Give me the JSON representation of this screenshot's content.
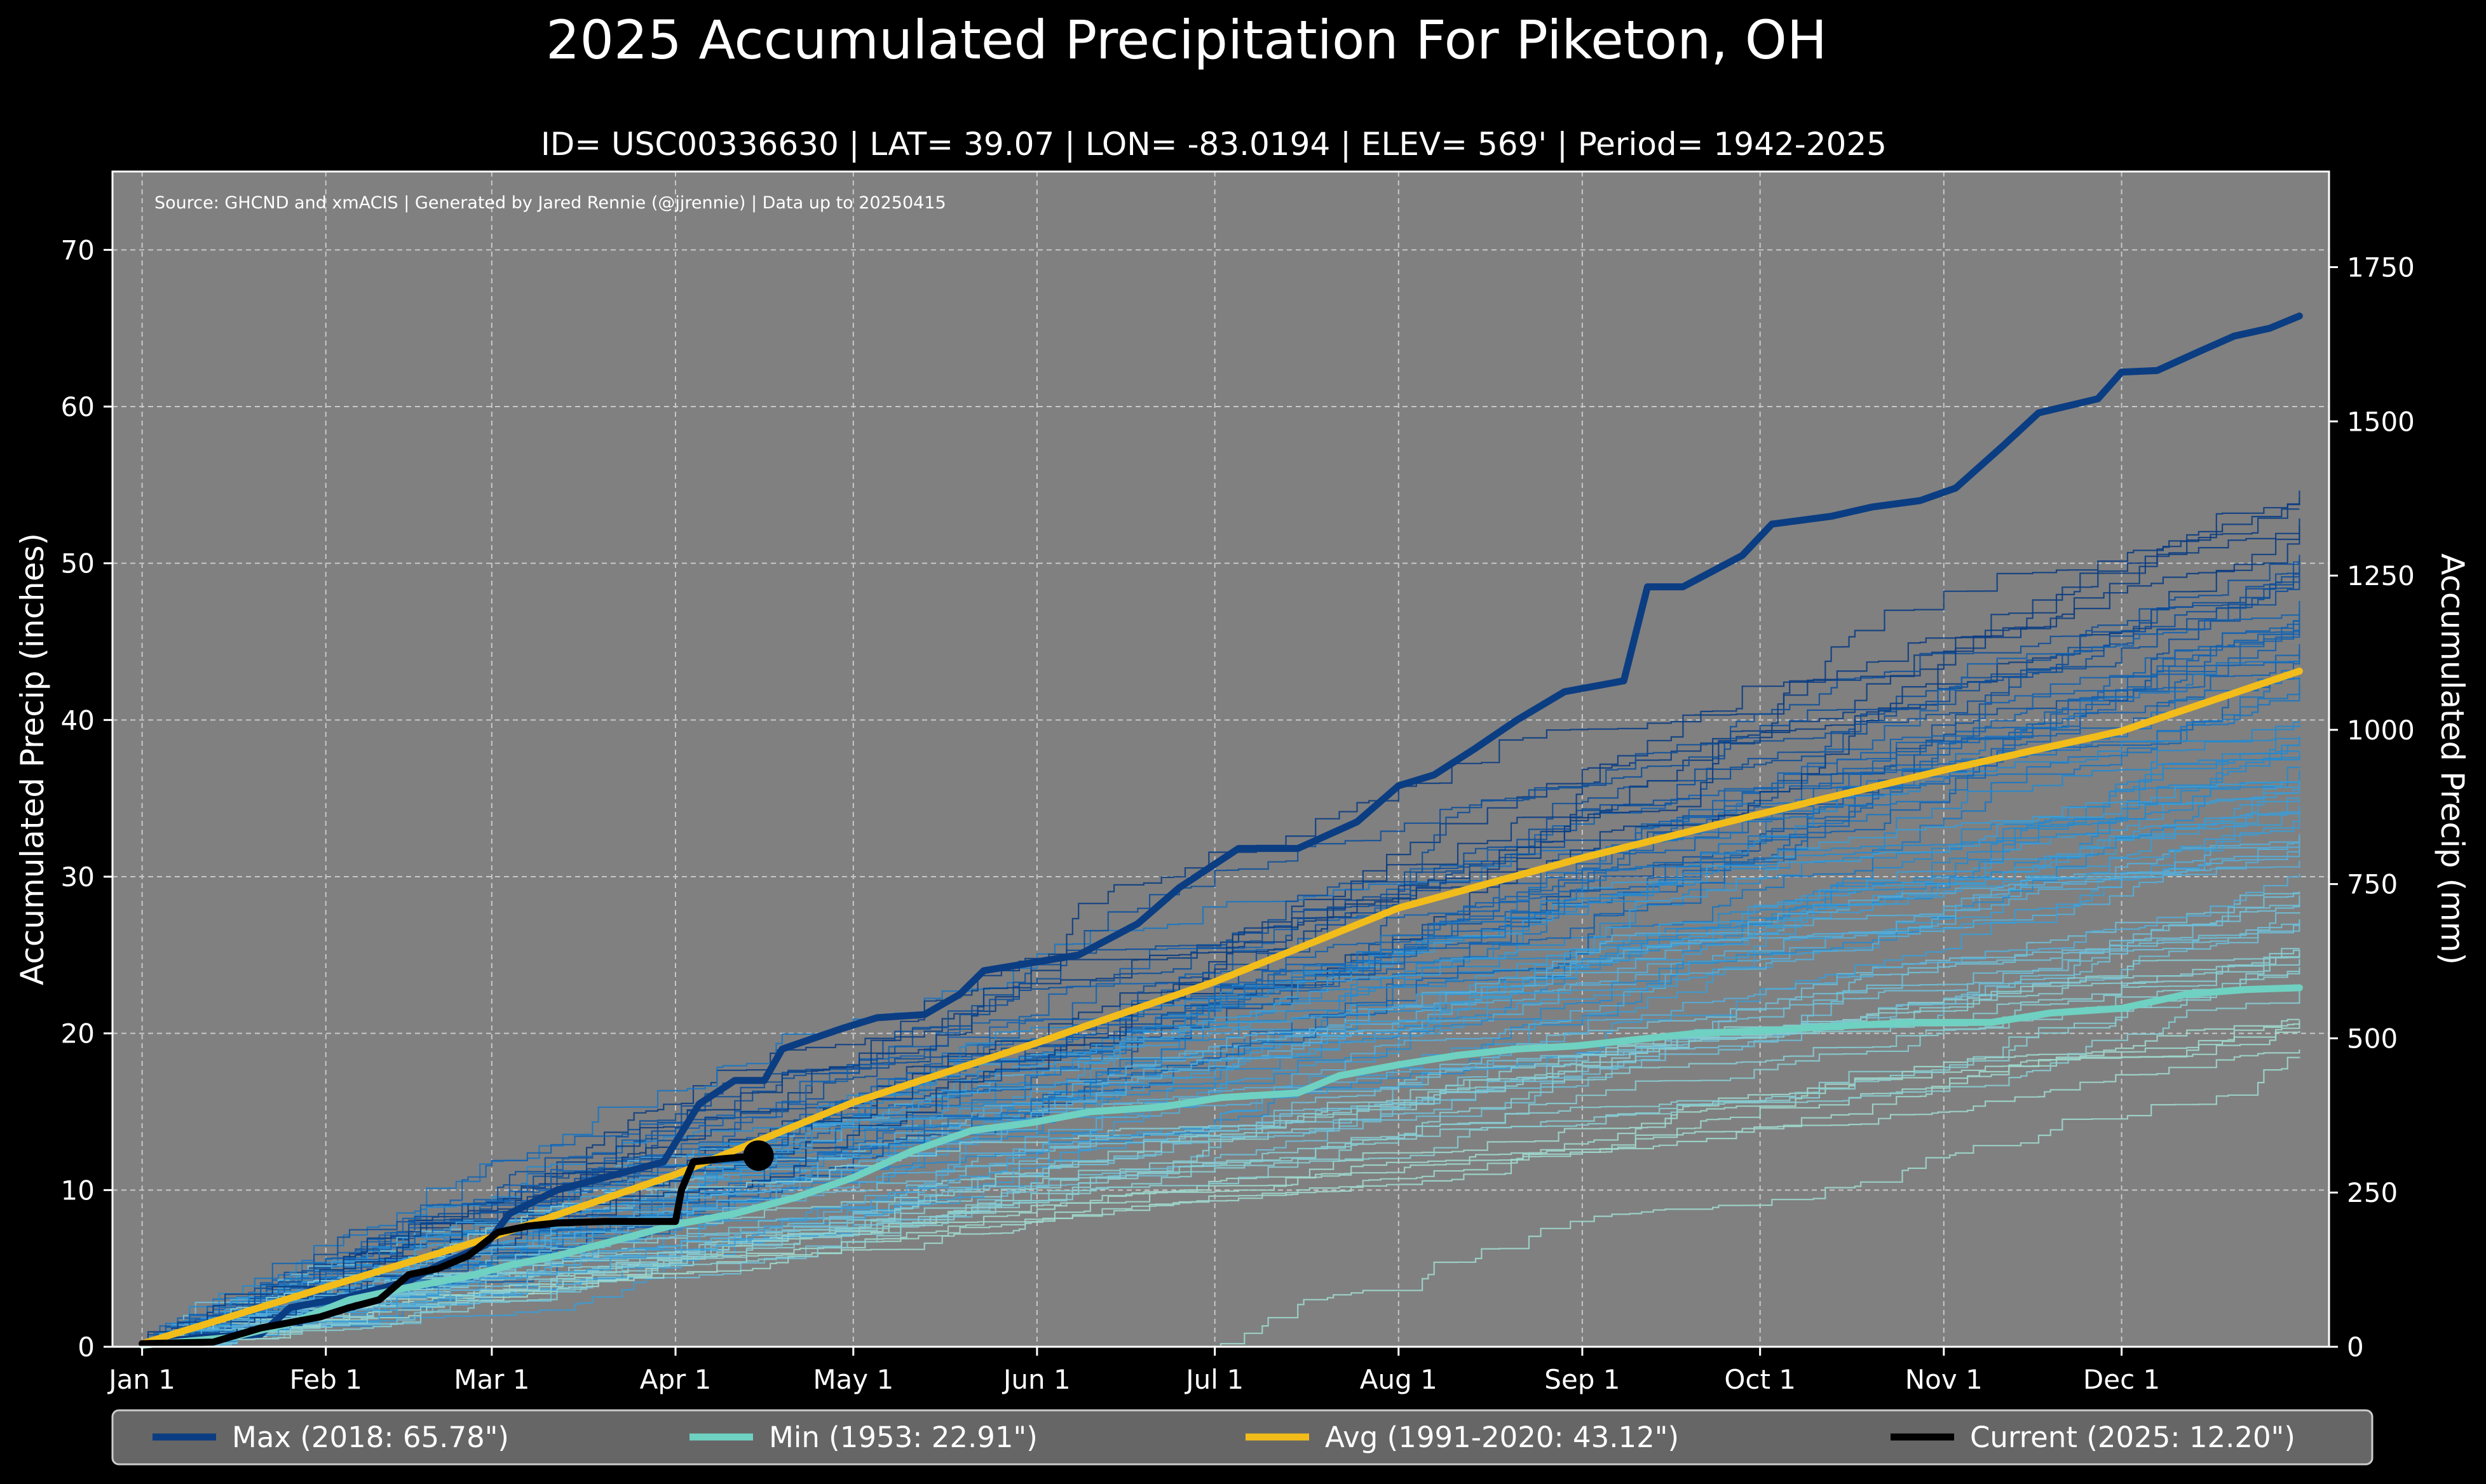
{
  "chart_data": {
    "type": "line",
    "title": "2025 Accumulated Precipitation For Piketon, OH",
    "subtitle": "ID= USC00336630 | LAT= 39.07 | LON= -83.0194 | ELEV= 569' | Period= 1942-2025",
    "source_note": "Source: GHCND and xmACIS | Generated by Jared Rennie (@jjrennie) | Data up to 20250415",
    "ylabel": "Accumulated Precip (inches)",
    "ylabel_right": "Accumulated Precip (mm)",
    "ylim": [
      0,
      75
    ],
    "xlim": [
      -5,
      369
    ],
    "grid": true,
    "x_tick_labels": [
      "Jan 1",
      "Feb 1",
      "Mar 1",
      "Apr 1",
      "May 1",
      "Jun 1",
      "Jul 1",
      "Aug 1",
      "Sep 1",
      "Oct 1",
      "Nov 1",
      "Dec 1"
    ],
    "x_tick_days": [
      0,
      31,
      59,
      90,
      120,
      151,
      181,
      212,
      243,
      273,
      304,
      334
    ],
    "y_tick_labels": [
      "0",
      "10",
      "20",
      "30",
      "40",
      "50",
      "60",
      "70"
    ],
    "y_tick_values": [
      0,
      10,
      20,
      30,
      40,
      50,
      60,
      70
    ],
    "y2_tick_labels": [
      "0",
      "250",
      "500",
      "750",
      "1000",
      "1250",
      "1500",
      "1750"
    ],
    "y2_tick_values_mm": [
      0,
      250,
      500,
      750,
      1000,
      1250,
      1500,
      1750
    ],
    "background_years": {
      "count": 80,
      "description": "thin lines for each year 1942-2024, colored dark blue to light cyan by year-end total",
      "final_totals_range": [
        18.5,
        55
      ]
    },
    "series": [
      {
        "name": "Max (2018:  65.78\")",
        "color": "#0b3d82",
        "points": [
          [
            0,
            0.2
          ],
          [
            10,
            0.6
          ],
          [
            20,
            0.8
          ],
          [
            25,
            2.5
          ],
          [
            35,
            3.2
          ],
          [
            45,
            4.2
          ],
          [
            50,
            5.2
          ],
          [
            58,
            6.5
          ],
          [
            62,
            8.5
          ],
          [
            70,
            10.0
          ],
          [
            80,
            11.0
          ],
          [
            88,
            11.8
          ],
          [
            94,
            15.5
          ],
          [
            100,
            17.0
          ],
          [
            105,
            17.0
          ],
          [
            108,
            19.0
          ],
          [
            118,
            20.3
          ],
          [
            124,
            21.0
          ],
          [
            132,
            21.2
          ],
          [
            138,
            22.5
          ],
          [
            142,
            24.0
          ],
          [
            150,
            24.5
          ],
          [
            158,
            25.0
          ],
          [
            168,
            27.0
          ],
          [
            175,
            29.3
          ],
          [
            185,
            31.8
          ],
          [
            195,
            31.8
          ],
          [
            205,
            33.5
          ],
          [
            212,
            35.8
          ],
          [
            218,
            36.5
          ],
          [
            225,
            38.2
          ],
          [
            232,
            40.0
          ],
          [
            240,
            41.8
          ],
          [
            250,
            42.5
          ],
          [
            254,
            48.5
          ],
          [
            260,
            48.5
          ],
          [
            265,
            49.5
          ],
          [
            270,
            50.5
          ],
          [
            275,
            52.5
          ],
          [
            285,
            53.0
          ],
          [
            292,
            53.6
          ],
          [
            300,
            54.0
          ],
          [
            306,
            54.8
          ],
          [
            314,
            57.5
          ],
          [
            320,
            59.6
          ],
          [
            330,
            60.5
          ],
          [
            334,
            62.2
          ],
          [
            340,
            62.3
          ],
          [
            347,
            63.5
          ],
          [
            353,
            64.5
          ],
          [
            359,
            65.0
          ],
          [
            364,
            65.78
          ]
        ]
      },
      {
        "name": "Min (1953:  22.91\")",
        "color": "#6fd1c1",
        "points": [
          [
            0,
            0.1
          ],
          [
            15,
            0.6
          ],
          [
            25,
            1.5
          ],
          [
            35,
            3.0
          ],
          [
            45,
            3.8
          ],
          [
            55,
            4.5
          ],
          [
            62,
            5.2
          ],
          [
            70,
            5.8
          ],
          [
            80,
            6.8
          ],
          [
            90,
            7.8
          ],
          [
            100,
            8.5
          ],
          [
            110,
            9.5
          ],
          [
            120,
            10.8
          ],
          [
            130,
            12.5
          ],
          [
            140,
            13.8
          ],
          [
            150,
            14.3
          ],
          [
            160,
            15.0
          ],
          [
            172,
            15.3
          ],
          [
            182,
            15.9
          ],
          [
            195,
            16.2
          ],
          [
            202,
            17.3
          ],
          [
            212,
            18.0
          ],
          [
            222,
            18.6
          ],
          [
            232,
            19.0
          ],
          [
            242,
            19.2
          ],
          [
            252,
            19.6
          ],
          [
            262,
            20.0
          ],
          [
            275,
            20.2
          ],
          [
            288,
            20.5
          ],
          [
            300,
            20.7
          ],
          [
            312,
            20.7
          ],
          [
            322,
            21.3
          ],
          [
            334,
            21.6
          ],
          [
            345,
            22.5
          ],
          [
            355,
            22.8
          ],
          [
            364,
            22.91
          ]
        ]
      },
      {
        "name": "Avg (1991-2020:  43.12\")",
        "color": "#f2bd1a",
        "points": [
          [
            0,
            0.2
          ],
          [
            31,
            3.8
          ],
          [
            59,
            7.0
          ],
          [
            90,
            11.0
          ],
          [
            120,
            15.6
          ],
          [
            151,
            19.4
          ],
          [
            181,
            23.3
          ],
          [
            212,
            28.0
          ],
          [
            243,
            31.2
          ],
          [
            273,
            34.0
          ],
          [
            304,
            36.8
          ],
          [
            334,
            39.3
          ],
          [
            364,
            43.12
          ]
        ]
      },
      {
        "name": "Current (2025:  12.20\")",
        "color": "#000000",
        "points": [
          [
            0,
            0.2
          ],
          [
            12,
            0.3
          ],
          [
            20,
            1.2
          ],
          [
            30,
            1.9
          ],
          [
            35,
            2.5
          ],
          [
            40,
            3.0
          ],
          [
            45,
            4.6
          ],
          [
            50,
            5.0
          ],
          [
            55,
            5.8
          ],
          [
            60,
            7.3
          ],
          [
            65,
            7.7
          ],
          [
            70,
            7.9
          ],
          [
            78,
            8.0
          ],
          [
            85,
            8.0
          ],
          [
            90,
            8.0
          ],
          [
            91,
            10.0
          ],
          [
            93,
            11.8
          ],
          [
            98,
            12.0
          ],
          [
            104,
            12.2
          ]
        ],
        "end_marker": [
          104,
          12.2
        ]
      }
    ],
    "legend": {
      "placement": "bottom",
      "entries": [
        "Max (2018:  65.78\")",
        "Min (1953:  22.91\")",
        "Avg (1991-2020:  43.12\")",
        "Current (2025:  12.20\")"
      ]
    }
  }
}
